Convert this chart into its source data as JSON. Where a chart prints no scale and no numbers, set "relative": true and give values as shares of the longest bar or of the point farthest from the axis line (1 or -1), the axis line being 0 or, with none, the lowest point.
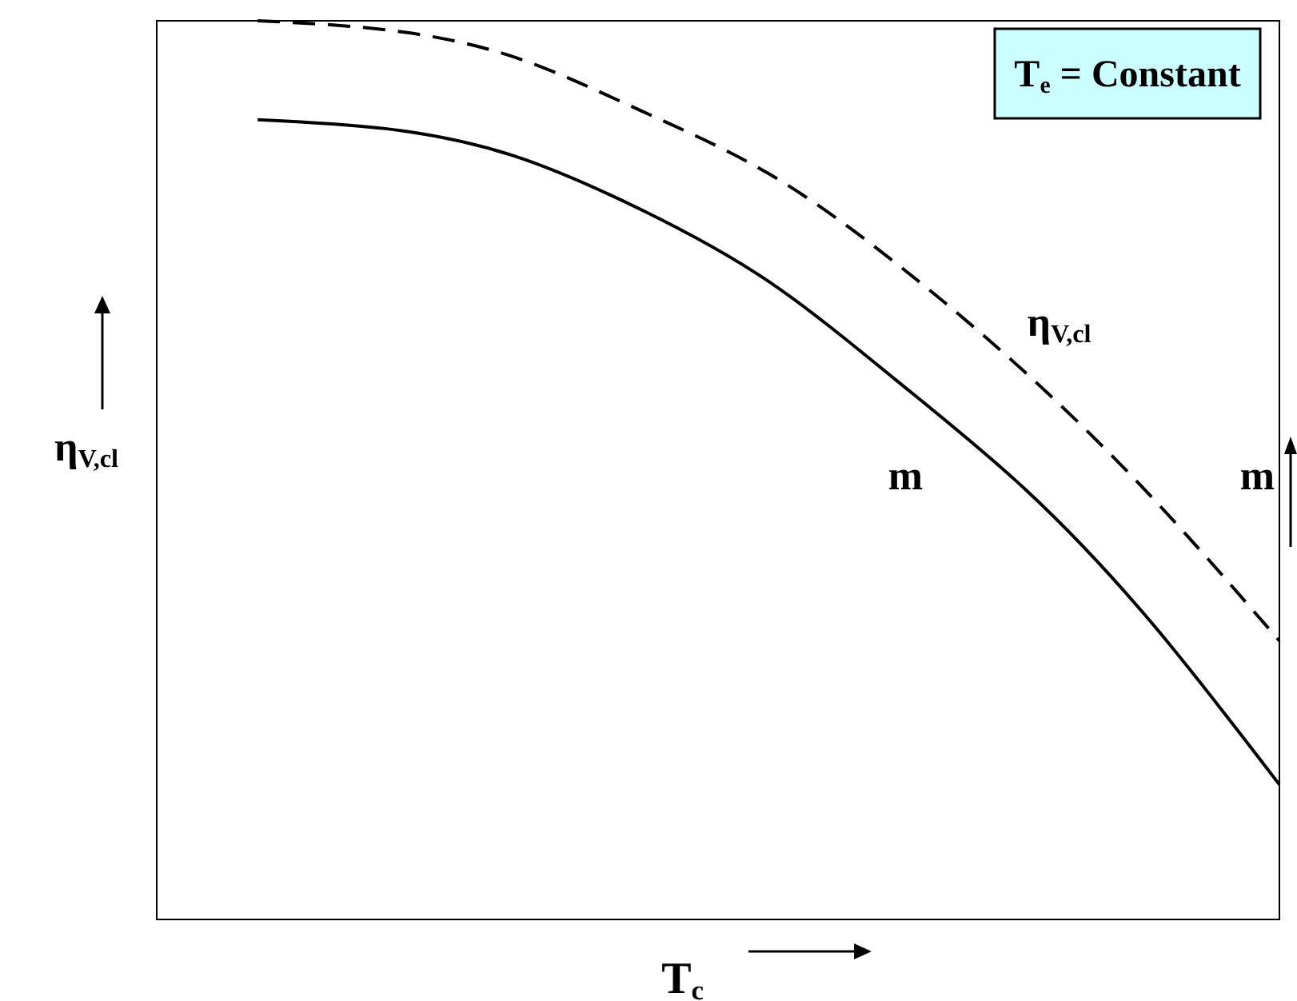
{
  "chart_data": {
    "type": "line",
    "relative": true,
    "xlabel": "T$_{c}$",
    "ylabel": "η$_{V,cl}$",
    "y2label": "m",
    "annotations": [
      "T$_{e}$ = Constant"
    ],
    "categories": [
      null,
      null,
      null,
      null,
      null,
      null,
      null,
      null,
      null
    ],
    "series": [
      {
        "name": "η$_{V,cl}$",
        "color": "#000000",
        "line_style": "dashed",
        "values": [
          1,
          0.99,
          0.96,
          0.9,
          0.83,
          0.73,
          0.61,
          0.47,
          0.31
        ]
      },
      {
        "name": "m",
        "color": "#000000",
        "line_style": "solid",
        "values": [
          0.89,
          0.88,
          0.85,
          0.79,
          0.71,
          0.6,
          0.48,
          0.33,
          0.15
        ]
      }
    ]
  }
}
